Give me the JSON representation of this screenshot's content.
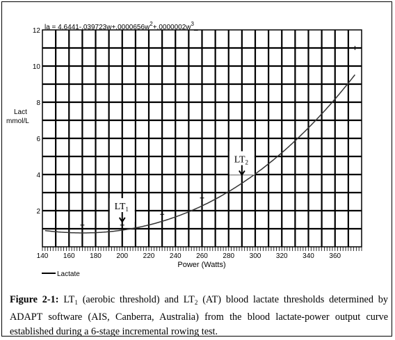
{
  "chart_data": {
    "type": "line",
    "equation_parts": [
      "la = 4.6441-.039723w+.0000656w",
      "2",
      "+.0000002w",
      "3"
    ],
    "xlabel": "Power (Watts)",
    "ylabel_line1": "Lact",
    "ylabel_line2": "mmol/L",
    "xlim": [
      140,
      380
    ],
    "ylim": [
      0,
      12
    ],
    "x_ticks": [
      140,
      160,
      180,
      200,
      220,
      240,
      260,
      280,
      300,
      320,
      340,
      360
    ],
    "y_ticks": [
      2,
      4,
      6,
      8,
      10,
      12
    ],
    "grid": true,
    "legend_position": "bottom-left",
    "series": [
      {
        "name": "Lactate",
        "color": "#000000",
        "points": [
          {
            "x": 170,
            "y": 1.2
          },
          {
            "x": 200,
            "y": 1.2
          },
          {
            "x": 230,
            "y": 1.8
          },
          {
            "x": 260,
            "y": 2.7
          },
          {
            "x": 290,
            "y": 4.4
          },
          {
            "x": 375,
            "y": 11.0
          }
        ],
        "fitted_curve": {
          "type": "cubic",
          "from": 142,
          "to": 375
        }
      }
    ],
    "annotations": [
      {
        "label": "LT",
        "subscript": "1",
        "x": 200
      },
      {
        "label": "LT",
        "subscript": "2",
        "x": 290
      }
    ]
  },
  "caption": {
    "bold_label": "Figure 2-1:",
    "lt1_a": "LT",
    "lt1_sub": "1",
    "text1": " (aerobic threshold) and LT",
    "lt2_sub": "2",
    "text2": " (AT) blood lactate thresholds determined by ADAPT software (AIS, Canberra, Australia) from the blood lactate-power output curve established during a 6-stage incremental rowing test."
  }
}
